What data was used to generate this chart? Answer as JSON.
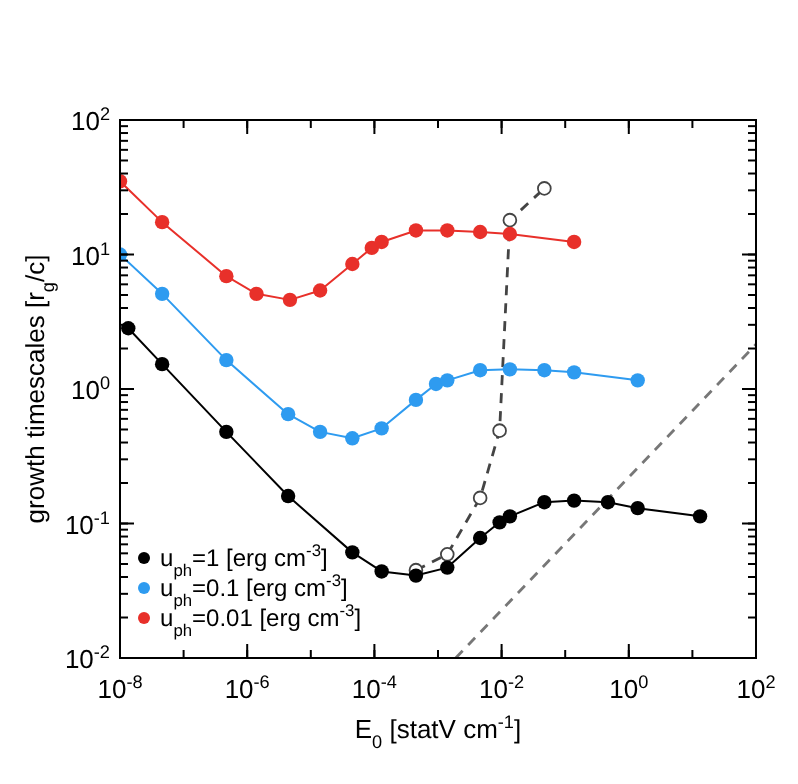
{
  "chart_data": {
    "type": "line",
    "xlabel": "E$_{0}$ [statV cm$^{-1}$]",
    "ylabel": "growth timescales [r$_{g}$/c]",
    "log": "xy",
    "grid": false,
    "legend": "bottom left",
    "marker": "circle",
    "line_style": "solid",
    "xlim": [
      1e-08,
      100
    ],
    "ylim": [
      0.01,
      100
    ],
    "xticks": [
      {
        "value": 1e-08,
        "label": "10$^{-8}$"
      },
      {
        "value": 1e-06,
        "label": "10$^{-6}$"
      },
      {
        "value": 0.0001,
        "label": "10$^{-4}$"
      },
      {
        "value": 0.01,
        "label": "10$^{-2}$"
      },
      {
        "value": 1,
        "label": "10$^{0}$"
      },
      {
        "value": 100,
        "label": "10$^{2}$"
      }
    ],
    "yticks": [
      {
        "value": 0.01,
        "label": "10$^{-2}$"
      },
      {
        "value": 0.1,
        "label": "10$^{-1}$"
      },
      {
        "value": 1,
        "label": "10$^{0}$"
      },
      {
        "value": 10,
        "label": "10$^{1}$"
      },
      {
        "value": 100,
        "label": "10$^{2}$"
      }
    ],
    "series": [
      {
        "name": "u$_{ph}$=1 [erg cm$^{-3}$]",
        "color": "#000000",
        "x": [
          1.35e-08,
          4.6e-08,
          4.7e-07,
          4.4e-06,
          4.5e-05,
          0.00013,
          0.00045,
          0.0014,
          0.0046,
          0.0093,
          0.0135,
          0.047,
          0.138,
          0.47,
          1.38,
          13.2
        ],
        "values": [
          2.83,
          1.53,
          0.48,
          0.16,
          0.061,
          0.044,
          0.041,
          0.047,
          0.078,
          0.102,
          0.113,
          0.144,
          0.148,
          0.144,
          0.13,
          0.113
        ]
      },
      {
        "name": "u$_{ph}$=0.1 [erg cm$^{-3}$]",
        "color": "#2e9bf0",
        "x": [
          1e-08,
          4.6e-08,
          4.7e-07,
          4.4e-06,
          1.4e-05,
          4.5e-05,
          0.00013,
          0.00045,
          0.00093,
          0.0014,
          0.0046,
          0.0135,
          0.047,
          0.138,
          1.38
        ],
        "values": [
          10,
          5.1,
          1.64,
          0.65,
          0.48,
          0.43,
          0.51,
          0.83,
          1.09,
          1.16,
          1.38,
          1.4,
          1.38,
          1.33,
          1.16
        ]
      },
      {
        "name": "u$_{ph}$=0.01 [erg cm$^{-3}$]",
        "color": "#e8302a",
        "x": [
          1e-08,
          4.6e-08,
          4.7e-07,
          1.4e-06,
          4.7e-06,
          1.4e-05,
          4.5e-05,
          9.1e-05,
          0.00013,
          0.00045,
          0.0014,
          0.0046,
          0.0135,
          0.138
        ],
        "values": [
          35,
          17.4,
          6.9,
          5.1,
          4.6,
          5.4,
          8.5,
          11.2,
          12.4,
          15.1,
          15.1,
          14.7,
          14.2,
          12.4
        ]
      },
      {
        "color": "#444444",
        "line_style": "dashed",
        "x": [
          0.00045,
          0.0014,
          0.0046,
          0.0093,
          0.0135,
          0.047
        ],
        "values": [
          0.045,
          0.059,
          0.155,
          0.49,
          18,
          31
        ]
      },
      {
        "color": "#777777",
        "line_style": "dashed",
        "marker": "none",
        "x": [
          0.0019,
          100
        ],
        "values": [
          0.01,
          2.15
        ]
      }
    ]
  }
}
